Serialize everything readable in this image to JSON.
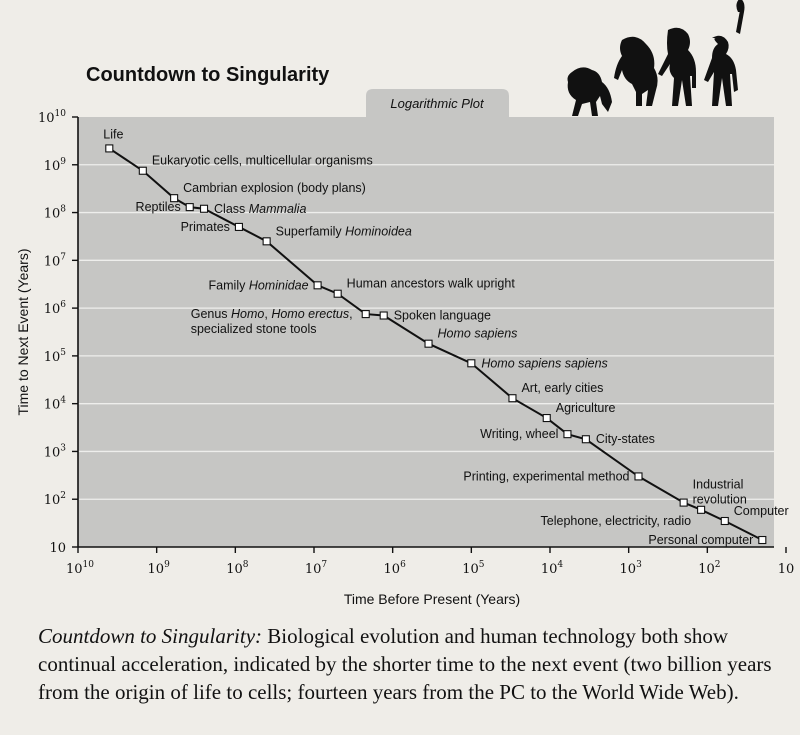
{
  "caption": {
    "title": "Countdown to Singularity:",
    "text": "Biological evolution and human technology both show continual acceleration, indicated by the shorter time to the next event (two billion years from the origin of life to cells; fourteen years from the PC to the World Wide Web)."
  },
  "chart_data": {
    "type": "line",
    "title": "Countdown to Singularity",
    "subtitle": "Logarithmic Plot",
    "xlabel": "Time Before Present (Years)",
    "ylabel": "Time to Next Event (Years)",
    "x_scale": "log",
    "y_scale": "log",
    "x_reversed": true,
    "xlim": [
      10000000000,
      10
    ],
    "ylim": [
      10,
      10000000000
    ],
    "x_ticks": [
      {
        "base": "10",
        "exp": "10"
      },
      {
        "base": "10",
        "exp": "9"
      },
      {
        "base": "10",
        "exp": "8"
      },
      {
        "base": "10",
        "exp": "7"
      },
      {
        "base": "10",
        "exp": "6"
      },
      {
        "base": "10",
        "exp": "5"
      },
      {
        "base": "10",
        "exp": "4"
      },
      {
        "base": "10",
        "exp": "3"
      },
      {
        "base": "10",
        "exp": "2"
      },
      {
        "base": "10",
        "exp": ""
      }
    ],
    "y_ticks": [
      {
        "base": "10",
        "exp": "10"
      },
      {
        "base": "10",
        "exp": "9"
      },
      {
        "base": "10",
        "exp": "8"
      },
      {
        "base": "10",
        "exp": "7"
      },
      {
        "base": "10",
        "exp": "6"
      },
      {
        "base": "10",
        "exp": "5"
      },
      {
        "base": "10",
        "exp": "4"
      },
      {
        "base": "10",
        "exp": "3"
      },
      {
        "base": "10",
        "exp": "2"
      },
      {
        "base": "10",
        "exp": ""
      }
    ],
    "grid": true,
    "colors": {
      "plot_bg": "#c6c6c4",
      "grid": "#eeeeec",
      "line": "#111111",
      "marker_fill": "#ffffff"
    },
    "points": [
      {
        "x": 4000000000,
        "y": 2200000000,
        "label": [
          [
            {
              "t": "Life"
            }
          ]
        ],
        "anchor": "up"
      },
      {
        "x": 1500000000,
        "y": 750000000,
        "label": [
          [
            {
              "t": "Eukaryotic cells, multicellular organisms"
            }
          ]
        ],
        "anchor": "right-up"
      },
      {
        "x": 600000000,
        "y": 200000000,
        "label": [
          [
            {
              "t": "Cambrian explosion (body plans)"
            }
          ]
        ],
        "anchor": "right-up"
      },
      {
        "x": 380000000,
        "y": 130000000,
        "label": [
          [
            {
              "t": "Reptiles"
            }
          ]
        ],
        "anchor": "left"
      },
      {
        "x": 250000000,
        "y": 120000000,
        "label": [
          [
            {
              "t": "Class "
            },
            {
              "t": "Mammalia",
              "i": true
            }
          ]
        ],
        "anchor": "right"
      },
      {
        "x": 90000000,
        "y": 50000000,
        "label": [
          [
            {
              "t": "Primates"
            }
          ]
        ],
        "anchor": "left"
      },
      {
        "x": 40000000,
        "y": 25000000,
        "label": [
          [
            {
              "t": "Superfamily "
            },
            {
              "t": "Hominoidea",
              "i": true
            }
          ]
        ],
        "anchor": "right-up"
      },
      {
        "x": 9000000,
        "y": 3000000,
        "label": [
          [
            {
              "t": "Family "
            },
            {
              "t": "Hominidae",
              "i": true
            }
          ]
        ],
        "anchor": "left"
      },
      {
        "x": 5000000,
        "y": 2000000,
        "label": [
          [
            {
              "t": "Human ancestors walk upright"
            }
          ]
        ],
        "anchor": "right-up"
      },
      {
        "x": 2200000,
        "y": 750000,
        "label": [
          [
            {
              "t": "Genus "
            },
            {
              "t": "Homo",
              "i": true
            },
            {
              "t": ", "
            },
            {
              "t": "Homo erectus",
              "i": true
            },
            {
              "t": ","
            }
          ],
          [
            {
              "t": "specialized stone tools"
            }
          ]
        ],
        "anchor": "left"
      },
      {
        "x": 1300000,
        "y": 700000,
        "label": [
          [
            {
              "t": "Spoken language"
            }
          ]
        ],
        "anchor": "right"
      },
      {
        "x": 350000,
        "y": 180000,
        "label": [
          [
            {
              "t": "Homo sapiens",
              "i": true
            }
          ]
        ],
        "anchor": "right-up"
      },
      {
        "x": 100000,
        "y": 70000,
        "label": [
          [
            {
              "t": "Homo sapiens sapiens",
              "i": true
            }
          ]
        ],
        "anchor": "right"
      },
      {
        "x": 30000,
        "y": 13000,
        "label": [
          [
            {
              "t": "Art, early cities"
            }
          ]
        ],
        "anchor": "right-up"
      },
      {
        "x": 11000,
        "y": 5000,
        "label": [
          [
            {
              "t": "Agriculture"
            }
          ]
        ],
        "anchor": "right-up"
      },
      {
        "x": 6000,
        "y": 2300,
        "label": [
          [
            {
              "t": "Writing, wheel"
            }
          ]
        ],
        "anchor": "left"
      },
      {
        "x": 3500,
        "y": 1800,
        "label": [
          [
            {
              "t": "City-states"
            }
          ]
        ],
        "anchor": "right"
      },
      {
        "x": 750,
        "y": 300,
        "label": [
          [
            {
              "t": "Printing, experimental method"
            }
          ]
        ],
        "anchor": "left"
      },
      {
        "x": 200,
        "y": 85,
        "label": [
          [
            {
              "t": "Industrial"
            }
          ],
          [
            {
              "t": "revolution"
            }
          ]
        ],
        "anchor": "right-up"
      },
      {
        "x": 120,
        "y": 60,
        "label": [
          [
            {
              "t": "Telephone, electricity, radio"
            }
          ]
        ],
        "anchor": "left-down"
      },
      {
        "x": 60,
        "y": 35,
        "label": [
          [
            {
              "t": "Computer"
            }
          ]
        ],
        "anchor": "right-up"
      },
      {
        "x": 20,
        "y": 14,
        "label": [
          [
            {
              "t": "Personal computer"
            }
          ]
        ],
        "anchor": "left"
      }
    ]
  }
}
